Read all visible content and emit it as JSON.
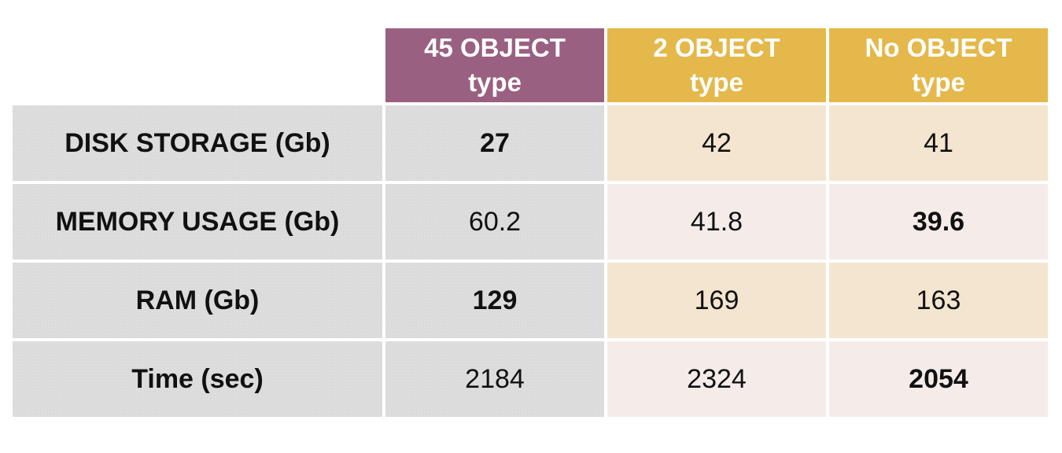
{
  "colors": {
    "header_col1": "#9a6081",
    "header_col2": "#e4b84a",
    "header_col3": "#e4b84a",
    "row_label_bg": "#dcdbdb",
    "cell_odd_bg": "#f4e5d0",
    "cell_even_bg": "#f5ecea"
  },
  "chart_data": {
    "type": "table",
    "columns": [
      {
        "line1": "45 OBJECT",
        "line2": "type"
      },
      {
        "line1": "2 OBJECT",
        "line2": "type"
      },
      {
        "line1": "No OBJECT",
        "line2": "type"
      }
    ],
    "rows": [
      {
        "label": "DISK STORAGE (Gb)",
        "values": [
          "27",
          "42",
          "41"
        ],
        "bold": [
          true,
          false,
          false
        ]
      },
      {
        "label": "MEMORY USAGE (Gb)",
        "values": [
          "60.2",
          "41.8",
          "39.6"
        ],
        "bold": [
          false,
          false,
          true
        ]
      },
      {
        "label": "RAM (Gb)",
        "values": [
          "129",
          "169",
          "163"
        ],
        "bold": [
          true,
          false,
          false
        ]
      },
      {
        "label": "Time (sec)",
        "values": [
          "2184",
          "2324",
          "2054"
        ],
        "bold": [
          false,
          false,
          true
        ]
      }
    ]
  }
}
